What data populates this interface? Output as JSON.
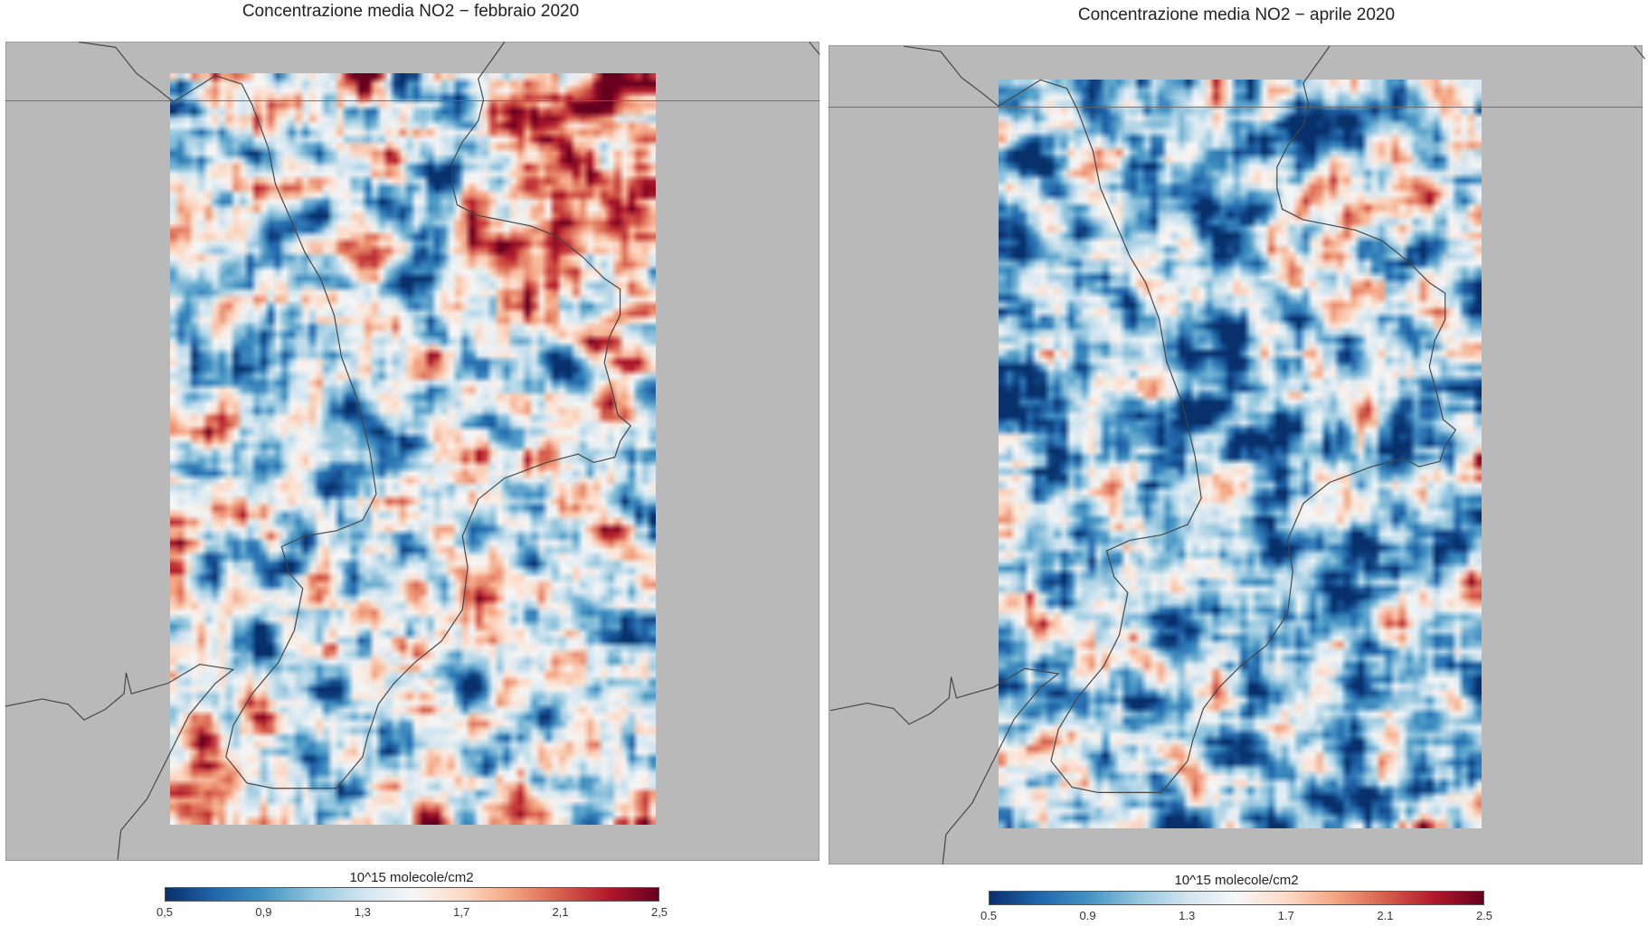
{
  "colormap": [
    "#08306b",
    "#2166ac",
    "#4393c3",
    "#92c5de",
    "#d1e5f0",
    "#f7f7f7",
    "#fddbc7",
    "#f4a582",
    "#d6604d",
    "#b2182b",
    "#67001f"
  ],
  "land_color": "#b9b9b9",
  "maps": [
    {
      "title": "Concentrazione media NO2 − febbraio 2020",
      "month": "febbraio 2020",
      "colorbar": {
        "label": "10^15 molecole/cm2",
        "min": 0.5,
        "max": 2.5,
        "ticks": [
          "0,5",
          "0,9",
          "1,3",
          "1,7",
          "2,1",
          "2,5"
        ]
      }
    },
    {
      "title": "Concentrazione media NO2 − aprile 2020",
      "month": "aprile 2020",
      "colorbar": {
        "label": "10^15 molecole/cm2",
        "min": 0.5,
        "max": 2.5,
        "ticks": [
          "0.5",
          "0.9",
          "1.3",
          "1.7",
          "2.1",
          "2.5"
        ]
      }
    }
  ]
}
